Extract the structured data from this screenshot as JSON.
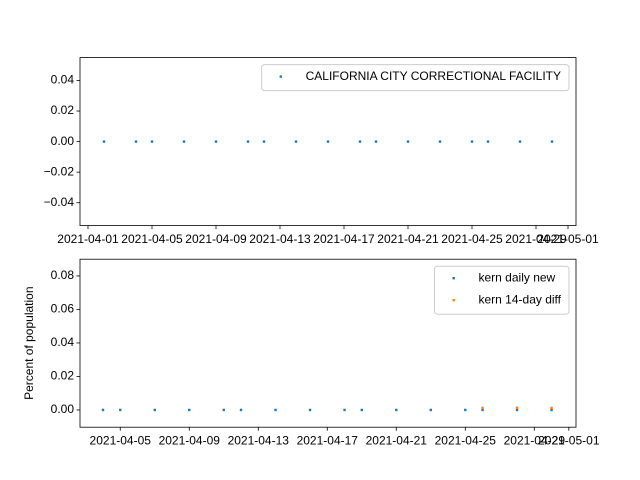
{
  "chart_data": [
    {
      "type": "scatter",
      "x": [
        "2021-04-02",
        "2021-04-04",
        "2021-04-05",
        "2021-04-07",
        "2021-04-09",
        "2021-04-11",
        "2021-04-12",
        "2021-04-14",
        "2021-04-16",
        "2021-04-18",
        "2021-04-19",
        "2021-04-21",
        "2021-04-23",
        "2021-04-25",
        "2021-04-26",
        "2021-04-28",
        "2021-04-30"
      ],
      "series": [
        {
          "name": "CALIFORNIA CITY CORRECTIONAL FACILITY",
          "color": "#1f77b4",
          "values": [
            0,
            0,
            0,
            0,
            0,
            0,
            0,
            0,
            0,
            0,
            0,
            0,
            0,
            0,
            0,
            0,
            0
          ]
        }
      ],
      "xlim": [
        "2021-03-31T12:00",
        "2021-05-01T12:00"
      ],
      "xticks": [
        "2021-04-01",
        "2021-04-05",
        "2021-04-09",
        "2021-04-13",
        "2021-04-17",
        "2021-04-21",
        "2021-04-25",
        "2021-04-29",
        "2021-05-01"
      ],
      "ylim": [
        -0.055,
        0.055
      ],
      "yticks": [
        {
          "value": -0.04,
          "label": "−0.04"
        },
        {
          "value": -0.02,
          "label": "−0.02"
        },
        {
          "value": 0,
          "label": "0.00"
        },
        {
          "value": 0.02,
          "label": "0.02"
        },
        {
          "value": 0.04,
          "label": "0.04"
        }
      ],
      "legend": "upper right"
    },
    {
      "type": "scatter",
      "x": [
        "2021-04-04",
        "2021-04-05",
        "2021-04-07",
        "2021-04-09",
        "2021-04-11",
        "2021-04-12",
        "2021-04-14",
        "2021-04-16",
        "2021-04-18",
        "2021-04-19",
        "2021-04-21",
        "2021-04-23",
        "2021-04-25",
        "2021-04-26",
        "2021-04-28",
        "2021-04-30"
      ],
      "series": [
        {
          "name": "kern daily new",
          "color": "#1f77b4",
          "values": [
            0,
            0,
            0,
            0,
            0,
            0,
            0,
            0,
            0,
            0,
            0,
            0,
            0,
            0,
            0,
            0
          ]
        },
        {
          "name": "kern 14-day diff",
          "color": "#ff7f0e",
          "values": [
            null,
            null,
            null,
            null,
            null,
            null,
            null,
            null,
            null,
            null,
            null,
            null,
            null,
            0.0012,
            0.0013,
            0.0012
          ]
        }
      ],
      "xlim": [
        "2021-04-02T16:00",
        "2021-05-01T10:00"
      ],
      "xticks": [
        "2021-04-05",
        "2021-04-09",
        "2021-04-13",
        "2021-04-17",
        "2021-04-21",
        "2021-04-25",
        "2021-04-29",
        "2021-05-01"
      ],
      "ylim": [
        -0.0103,
        0.09
      ],
      "yticks": [
        {
          "value": 0,
          "label": "0.00"
        },
        {
          "value": 0.02,
          "label": "0.02"
        },
        {
          "value": 0.04,
          "label": "0.04"
        },
        {
          "value": 0.06,
          "label": "0.06"
        },
        {
          "value": 0.08,
          "label": "0.08"
        }
      ],
      "ylabel": "Percent of population",
      "legend": "upper right"
    }
  ]
}
